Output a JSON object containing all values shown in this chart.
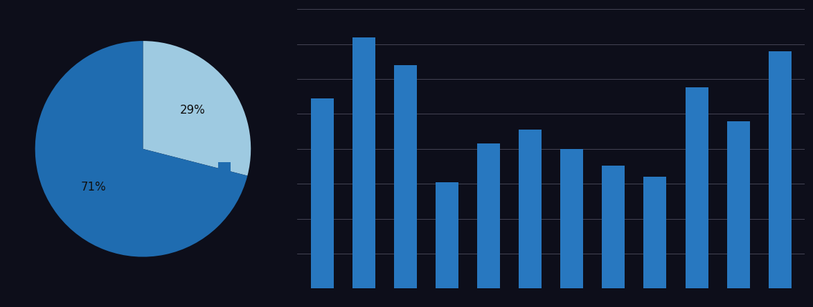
{
  "pie_values": [
    29,
    71
  ],
  "pie_colors": [
    "#9ecae1",
    "#1f6cb0"
  ],
  "pie_labels": [
    "29%",
    "71%"
  ],
  "legend_colors": [
    "#9ecae1",
    "#1f6cb0"
  ],
  "bar_values": [
    68,
    90,
    80,
    38,
    52,
    57,
    50,
    44,
    40,
    72,
    60,
    85
  ],
  "bar_color": "#2878c0",
  "background_color": "#0d0e1a",
  "grid_color": "#555566",
  "text_color": "#111111",
  "label_fontsize": 12
}
